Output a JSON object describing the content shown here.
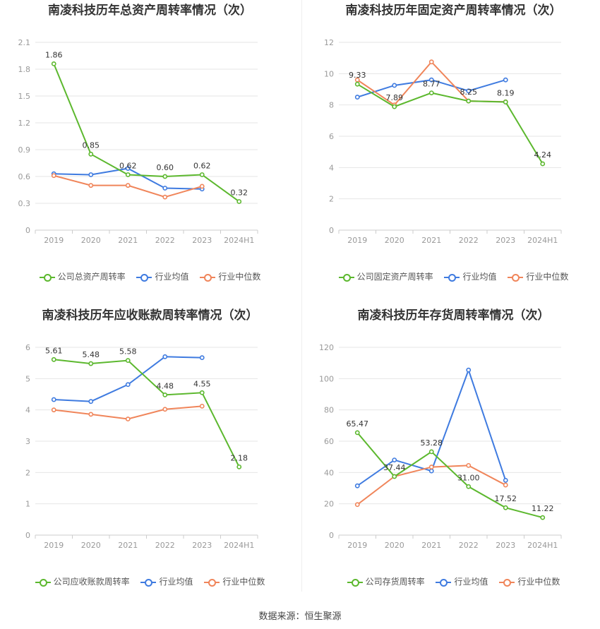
{
  "source_text": "数据来源：恒生聚源",
  "colors": {
    "company": "#5cb82e",
    "avg": "#3f7be0",
    "median": "#f0855a",
    "axis": "#999999",
    "grid": "#e6e6e6"
  },
  "chart_data": [
    {
      "type": "line",
      "title": "南凌科技历年总资产周转率情况（次）",
      "categories": [
        "2019",
        "2020",
        "2021",
        "2022",
        "2023",
        "2024H1"
      ],
      "ylim": [
        0,
        2.1
      ],
      "yticks": [
        0,
        0.3,
        0.6,
        0.9,
        1.2,
        1.5,
        1.8,
        2.1
      ],
      "ytick_labels": [
        "0",
        "0.3",
        "0.6",
        "0.9",
        "1.2",
        "1.5",
        "1.8",
        "2.1"
      ],
      "series": [
        {
          "name": "公司总资产周转率",
          "role": "company",
          "values": [
            1.86,
            0.85,
            0.62,
            0.6,
            0.62,
            0.32
          ],
          "labels": [
            "1.86",
            "0.85",
            "0.62",
            "0.60",
            "0.62",
            "0.32"
          ]
        },
        {
          "name": "行业均值",
          "role": "avg",
          "values": [
            0.63,
            0.62,
            0.69,
            0.47,
            0.46,
            null
          ]
        },
        {
          "name": "行业中位数",
          "role": "median",
          "values": [
            0.61,
            0.5,
            0.5,
            0.37,
            0.49,
            null
          ]
        }
      ],
      "legend_position": "bottom",
      "grid": true
    },
    {
      "type": "line",
      "title": "南凌科技历年固定资产周转率情况（次）",
      "categories": [
        "2019",
        "2020",
        "2021",
        "2022",
        "2023",
        "2024H1"
      ],
      "ylim": [
        0,
        12
      ],
      "yticks": [
        0,
        2,
        4,
        6,
        8,
        10,
        12
      ],
      "ytick_labels": [
        "0",
        "2",
        "4",
        "6",
        "8",
        "10",
        "12"
      ],
      "series": [
        {
          "name": "公司固定资产周转率",
          "role": "company",
          "values": [
            9.33,
            7.89,
            8.77,
            8.25,
            8.19,
            4.24
          ],
          "labels": [
            "9.33",
            "7.89",
            "8.77",
            "8.25",
            "8.19",
            "4.24"
          ]
        },
        {
          "name": "行业均值",
          "role": "avg",
          "values": [
            8.5,
            9.25,
            9.6,
            8.9,
            9.6,
            null
          ]
        },
        {
          "name": "行业中位数",
          "role": "median",
          "values": [
            9.6,
            8.0,
            10.75,
            8.25,
            8.2,
            null
          ]
        }
      ],
      "legend_position": "bottom",
      "grid": true
    },
    {
      "type": "line",
      "title": "南凌科技历年应收账款周转率情况（次）",
      "categories": [
        "2019",
        "2020",
        "2021",
        "2022",
        "2023",
        "2024H1"
      ],
      "ylim": [
        0,
        6
      ],
      "yticks": [
        0,
        1,
        2,
        3,
        4,
        5,
        6
      ],
      "ytick_labels": [
        "0",
        "1",
        "2",
        "3",
        "4",
        "5",
        "6"
      ],
      "series": [
        {
          "name": "公司应收账款周转率",
          "role": "company",
          "values": [
            5.61,
            5.48,
            5.58,
            4.48,
            4.55,
            2.18
          ],
          "labels": [
            "5.61",
            "5.48",
            "5.58",
            "4.48",
            "4.55",
            "2.18"
          ]
        },
        {
          "name": "行业均值",
          "role": "avg",
          "values": [
            4.33,
            4.27,
            4.81,
            5.7,
            5.67,
            null
          ]
        },
        {
          "name": "行业中位数",
          "role": "median",
          "values": [
            4.0,
            3.86,
            3.71,
            4.02,
            4.12,
            null
          ]
        }
      ],
      "legend_position": "bottom",
      "grid": true
    },
    {
      "type": "line",
      "title": "南凌科技历年存货周转率情况（次）",
      "categories": [
        "2019",
        "2020",
        "2021",
        "2022",
        "2023",
        "2024H1"
      ],
      "ylim": [
        0,
        120
      ],
      "yticks": [
        0,
        20,
        40,
        60,
        80,
        100,
        120
      ],
      "ytick_labels": [
        "0",
        "20",
        "40",
        "60",
        "80",
        "100",
        "120"
      ],
      "series": [
        {
          "name": "公司存货周转率",
          "role": "company",
          "values": [
            65.47,
            37.44,
            53.28,
            31.0,
            17.52,
            11.22
          ],
          "labels": [
            "65.47",
            "37.44",
            "53.28",
            "31.00",
            "17.52",
            "11.22"
          ]
        },
        {
          "name": "行业均值",
          "role": "avg",
          "values": [
            31.5,
            48.0,
            41.0,
            105.5,
            35.0,
            null
          ]
        },
        {
          "name": "行业中位数",
          "role": "median",
          "values": [
            19.5,
            37.5,
            43.5,
            44.5,
            32.0,
            null
          ]
        }
      ],
      "legend_position": "bottom",
      "grid": true
    }
  ]
}
